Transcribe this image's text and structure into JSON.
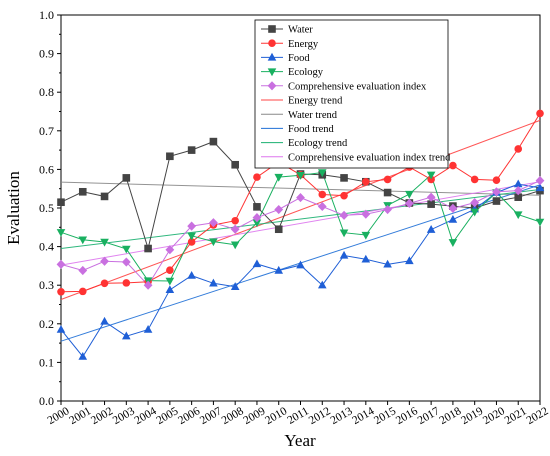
{
  "chart_data": {
    "type": "line",
    "xlabel": "Year",
    "ylabel": "Evaluation",
    "ylim": [
      0.0,
      1.0
    ],
    "yticks": [
      "0.0",
      "0.1",
      "0.2",
      "0.3",
      "0.4",
      "0.5",
      "0.6",
      "0.7",
      "0.8",
      "0.9",
      "1.0"
    ],
    "x": [
      2000,
      2001,
      2002,
      2003,
      2004,
      2005,
      2006,
      2007,
      2008,
      2009,
      2010,
      2011,
      2012,
      2013,
      2014,
      2015,
      2016,
      2017,
      2018,
      2019,
      2020,
      2021,
      2022
    ],
    "xtick_labels": [
      "2000",
      "2001",
      "2002",
      "2003",
      "2004",
      "2005",
      "2006",
      "2007",
      "2008",
      "2009",
      "2010",
      "2011",
      "2012",
      "2013",
      "2014",
      "2015",
      "2016",
      "2017",
      "2018",
      "2019",
      "2020",
      "2021",
      "2022"
    ],
    "legend_position": "top-center",
    "series": [
      {
        "name": "Water",
        "color": "#444444",
        "marker": "square",
        "values": [
          0.515,
          0.542,
          0.53,
          0.578,
          0.395,
          0.634,
          0.65,
          0.672,
          0.612,
          0.503,
          0.445,
          0.588,
          0.586,
          0.578,
          0.568,
          0.54,
          0.513,
          0.51,
          0.505,
          0.5,
          0.518,
          0.528,
          0.545
        ]
      },
      {
        "name": "Energy",
        "color": "#ff3333",
        "marker": "circle",
        "values": [
          0.283,
          0.284,
          0.305,
          0.306,
          0.309,
          0.339,
          0.412,
          0.456,
          0.467,
          0.58,
          0.619,
          0.586,
          0.535,
          0.532,
          0.568,
          0.574,
          0.606,
          0.574,
          0.61,
          0.574,
          0.572,
          0.653,
          0.745
        ]
      },
      {
        "name": "Food",
        "color": "#1f5fd6",
        "marker": "triangle-up",
        "values": [
          0.185,
          0.115,
          0.206,
          0.168,
          0.185,
          0.288,
          0.325,
          0.305,
          0.296,
          0.355,
          0.338,
          0.352,
          0.3,
          0.377,
          0.367,
          0.354,
          0.363,
          0.444,
          0.47,
          0.497,
          0.54,
          0.562,
          0.552
        ]
      },
      {
        "name": "Ecology",
        "color": "#19b060",
        "marker": "triangle-down",
        "values": [
          0.437,
          0.418,
          0.412,
          0.394,
          0.312,
          0.311,
          0.428,
          0.413,
          0.405,
          0.462,
          0.58,
          0.585,
          0.592,
          0.436,
          0.43,
          0.507,
          0.536,
          0.586,
          0.411,
          0.49,
          0.54,
          0.483,
          0.464
        ]
      },
      {
        "name": "Comprehensive evaluation index",
        "color": "#c970e0",
        "marker": "diamond",
        "values": [
          0.354,
          0.338,
          0.362,
          0.36,
          0.3,
          0.392,
          0.453,
          0.462,
          0.445,
          0.475,
          0.496,
          0.527,
          0.504,
          0.481,
          0.484,
          0.496,
          0.512,
          0.528,
          0.499,
          0.514,
          0.542,
          0.545,
          0.571
        ]
      }
    ],
    "trends": [
      {
        "name": "Energy trend",
        "color": "#ff4444",
        "values": [
          0.263,
          0.727
        ]
      },
      {
        "name": "Water trend",
        "color": "#888888",
        "values": [
          0.567,
          0.533
        ]
      },
      {
        "name": "Food trend",
        "color": "#1f6fd6",
        "values": [
          0.155,
          0.56
        ]
      },
      {
        "name": "Ecology trend",
        "color": "#19b070",
        "values": [
          0.395,
          0.548
        ]
      },
      {
        "name": "Comprehensive evaluation index trend",
        "color": "#dd77ee",
        "values": [
          0.352,
          0.568
        ]
      }
    ]
  }
}
